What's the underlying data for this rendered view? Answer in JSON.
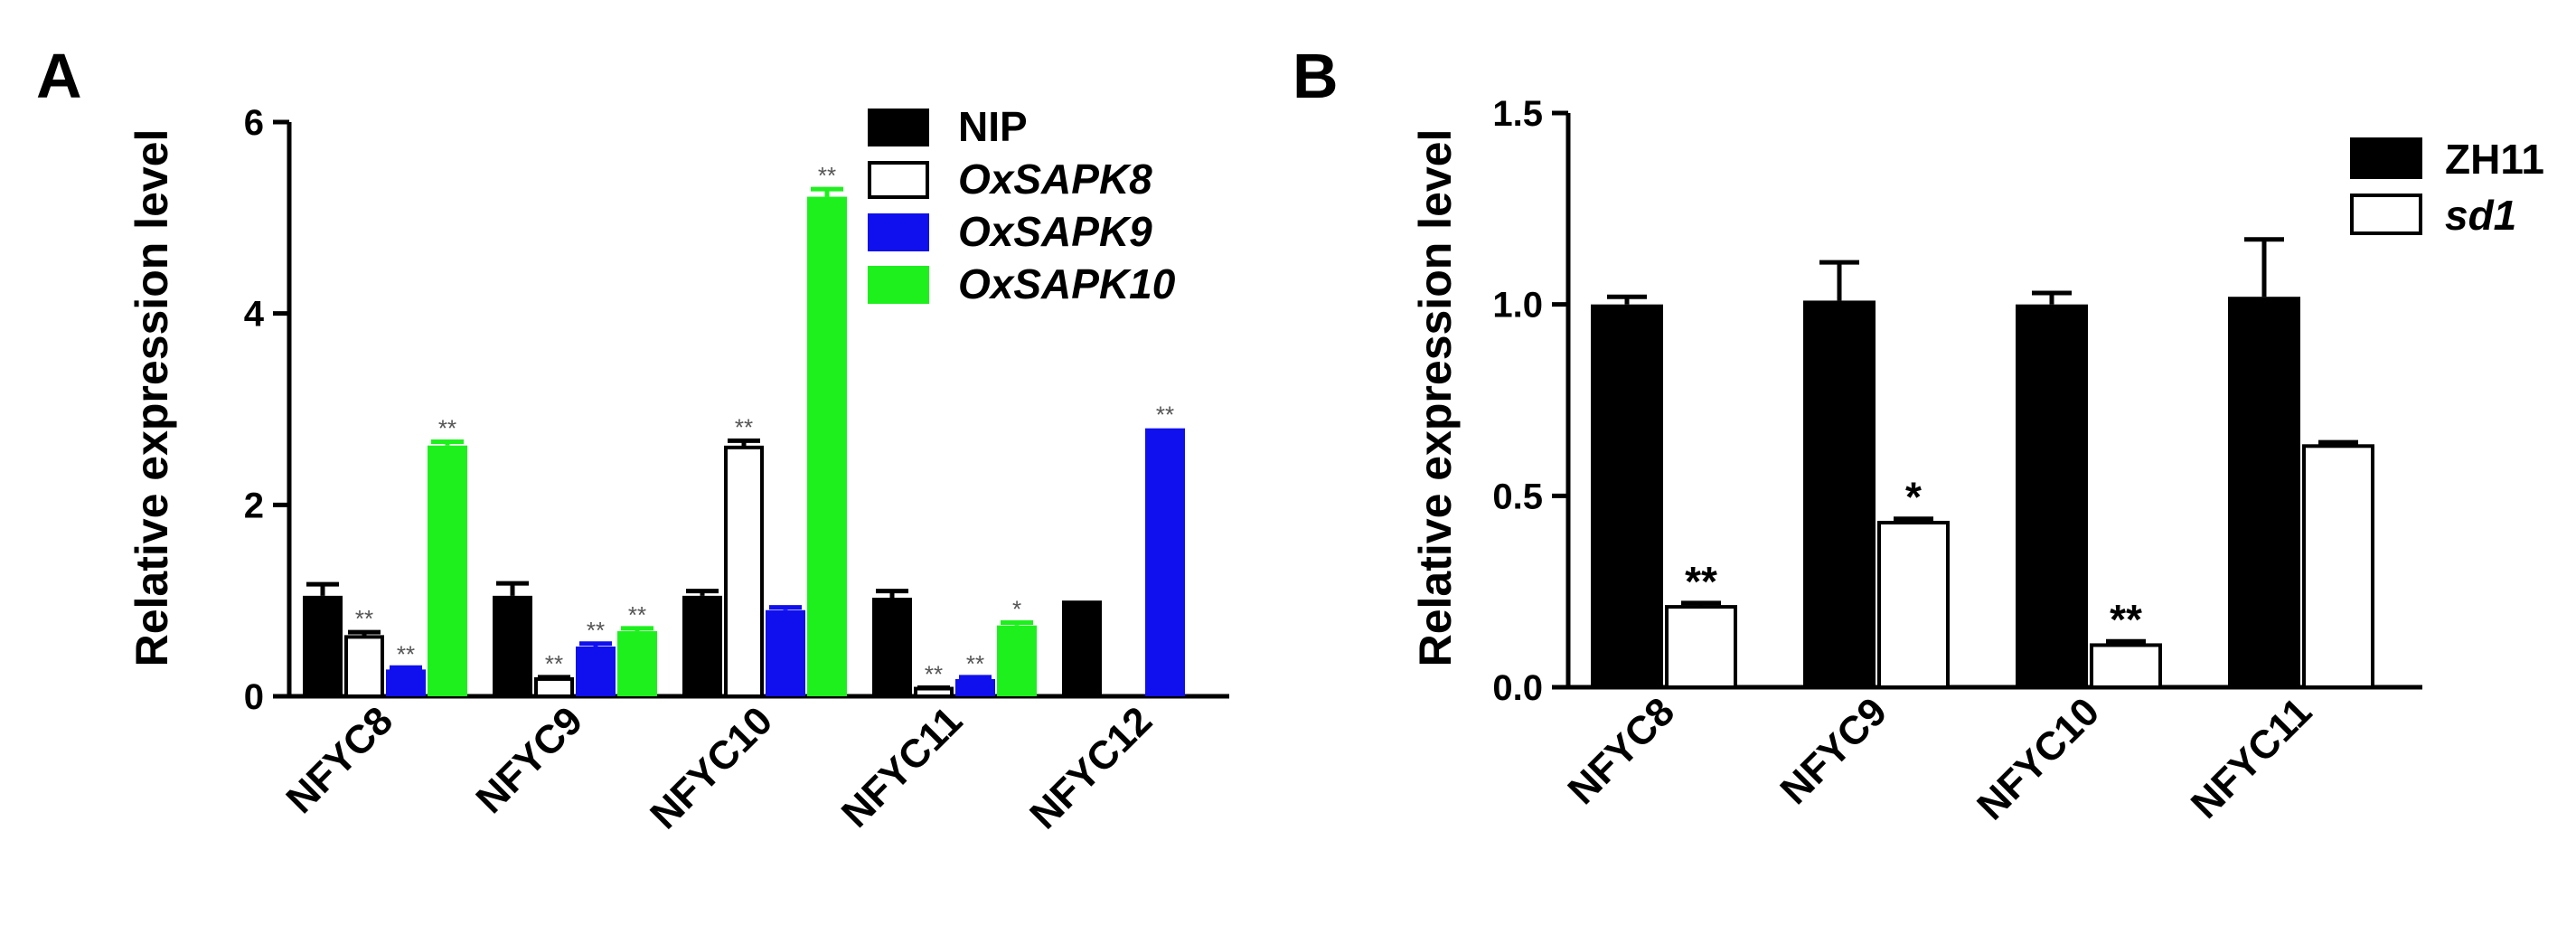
{
  "chart_data": [
    {
      "panel": "A",
      "type": "bar",
      "ylabel": "Relative expression level",
      "ylim": [
        0,
        6
      ],
      "yticks": [
        0,
        2,
        4,
        6
      ],
      "categories": [
        "NFYC8",
        "NFYC9",
        "NFYC10",
        "NFYC11",
        "NFYC12"
      ],
      "legend_position": "top-right",
      "series": [
        {
          "name": "NIP",
          "italic": false,
          "fill": "#000000",
          "stroke": "#000000",
          "values": [
            1.05,
            1.05,
            1.05,
            1.03,
            1.0
          ],
          "errors": [
            0.12,
            0.13,
            0.05,
            0.07,
            0
          ],
          "sig": [
            "",
            "",
            "",
            "",
            ""
          ]
        },
        {
          "name": "OxSAPK8",
          "italic": true,
          "fill": "#ffffff",
          "stroke": "#000000",
          "values": [
            0.62,
            0.18,
            2.6,
            0.08,
            0
          ],
          "errors": [
            0.05,
            0.02,
            0.07,
            0.01,
            0
          ],
          "sig": [
            "**",
            "**",
            "**",
            "**",
            ""
          ]
        },
        {
          "name": "OxSAPK9",
          "italic": true,
          "fill": "#1010ee",
          "stroke": "#1010ee",
          "values": [
            0.28,
            0.52,
            0.9,
            0.18,
            2.8
          ],
          "errors": [
            0.02,
            0.03,
            0.03,
            0.02,
            0
          ],
          "sig": [
            "**",
            "**",
            "",
            "**",
            "**"
          ]
        },
        {
          "name": "OxSAPK10",
          "italic": true,
          "fill": "#1ef01e",
          "stroke": "#1ef01e",
          "values": [
            2.62,
            0.68,
            5.22,
            0.74,
            0
          ],
          "errors": [
            0.04,
            0.03,
            0.08,
            0.03,
            0
          ],
          "sig": [
            "**",
            "**",
            "**",
            "*",
            ""
          ]
        }
      ]
    },
    {
      "panel": "B",
      "type": "bar",
      "ylabel": "Relative expression level",
      "ylim": [
        0,
        1.5
      ],
      "yticks": [
        "0.0",
        "0.5",
        "1.0",
        "1.5"
      ],
      "categories": [
        "NFYC8",
        "NFYC9",
        "NFYC10",
        "NFYC11"
      ],
      "legend_position": "top-right",
      "series": [
        {
          "name": "ZH11",
          "italic": false,
          "fill": "#000000",
          "stroke": "#000000",
          "values": [
            1.0,
            1.01,
            1.0,
            1.02
          ],
          "errors": [
            0.02,
            0.1,
            0.03,
            0.15
          ],
          "sig": [
            "",
            "",
            "",
            ""
          ]
        },
        {
          "name": "sd1",
          "italic": true,
          "fill": "#ffffff",
          "stroke": "#000000",
          "values": [
            0.21,
            0.43,
            0.11,
            0.63
          ],
          "errors": [
            0.01,
            0.01,
            0.01,
            0.01
          ],
          "sig": [
            "**",
            "*",
            "**",
            ""
          ]
        }
      ]
    }
  ]
}
